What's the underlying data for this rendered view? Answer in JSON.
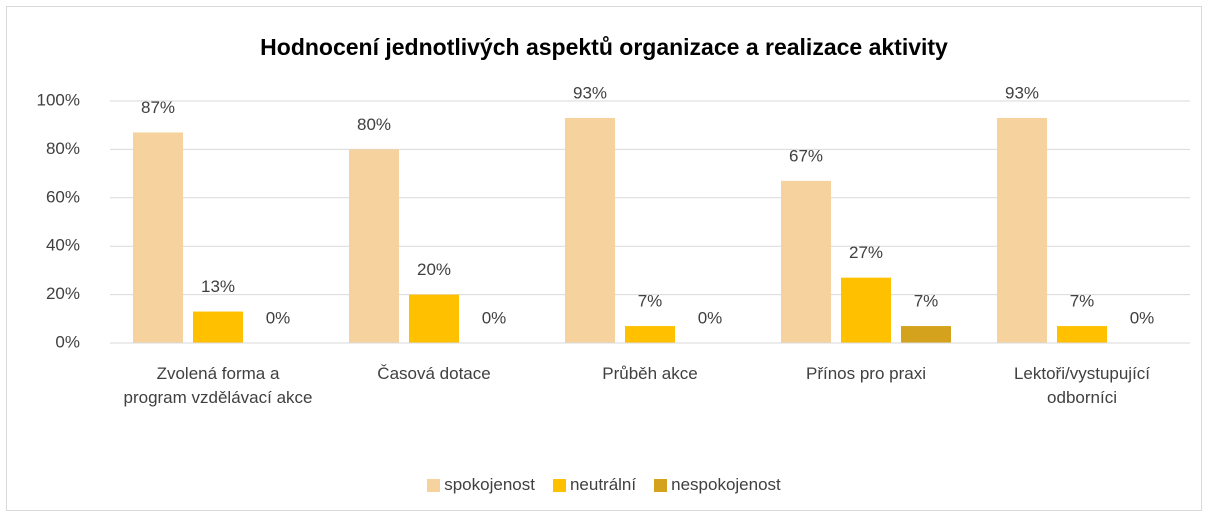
{
  "chart_data": {
    "type": "bar",
    "title": "Hodnocení jednotlivých aspektů organizace a realizace aktivity",
    "categories": [
      "Zvolená forma a program vzdělávací akce",
      "Časová dotace",
      "Průběh akce",
      "Přínos pro praxi",
      "Lektoři/vystupující odborníci"
    ],
    "series": [
      {
        "name": "spokojenost",
        "color": "#f6d29e",
        "values": [
          87,
          80,
          93,
          67,
          93
        ],
        "value_labels": [
          "87%",
          "80%",
          "93%",
          "67%",
          "93%"
        ]
      },
      {
        "name": "neutrální",
        "color": "#ffc000",
        "values": [
          13,
          20,
          7,
          27,
          7
        ],
        "value_labels": [
          "13%",
          "20%",
          "7%",
          "27%",
          "7%"
        ]
      },
      {
        "name": "nespokojenost",
        "color": "#d4a21c",
        "values": [
          0,
          0,
          0,
          7,
          0
        ],
        "value_labels": [
          "0%",
          "0%",
          "0%",
          "7%",
          "0%"
        ]
      }
    ],
    "ylim": [
      0,
      100
    ],
    "yticks": [
      {
        "value": 0,
        "label": "0%"
      },
      {
        "value": 20,
        "label": "20%"
      },
      {
        "value": 40,
        "label": "40%"
      },
      {
        "value": 60,
        "label": "60%"
      },
      {
        "value": 80,
        "label": "80%"
      },
      {
        "value": 100,
        "label": "100%"
      }
    ],
    "grid": true,
    "legend": "bottom"
  }
}
